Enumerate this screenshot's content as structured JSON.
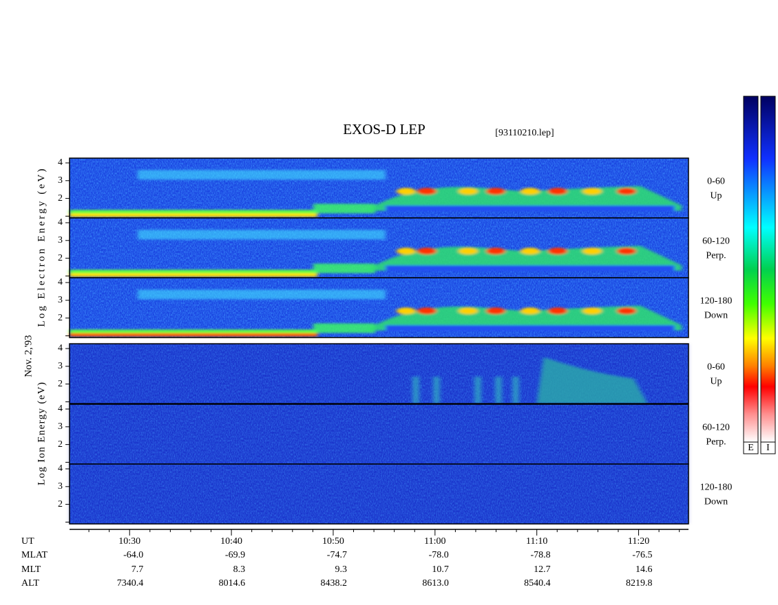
{
  "chart_data": {
    "type": "spectrogram",
    "title": "EXOS-D LEP",
    "subtitle": "[93110210.lep]",
    "date_label": "Nov. 2,'93",
    "xlim": [
      624.1,
      684.9
    ],
    "xticks": [
      {
        "value": 630,
        "label": "10:30"
      },
      {
        "value": 640,
        "label": "10:40"
      },
      {
        "value": 650,
        "label": "10:50"
      },
      {
        "value": 660,
        "label": "11:00"
      },
      {
        "value": 670,
        "label": "11:10"
      },
      {
        "value": 680,
        "label": "11:20"
      }
    ],
    "xminor_ticks": [
      626,
      628,
      632,
      634,
      636,
      638,
      642,
      644,
      646,
      648,
      652,
      654,
      656,
      658,
      662,
      664,
      666,
      668,
      672,
      674,
      676,
      678,
      682,
      684
    ],
    "ylim": [
      0.9,
      4.27
    ],
    "yticks": [
      2,
      3,
      4
    ],
    "yminor_ticks": [
      1
    ],
    "groups": [
      {
        "ylabel": "Log Electron Energy (eV)",
        "kind": "electron",
        "panels": [
          {
            "energy_range": "0-60",
            "direction": "Up"
          },
          {
            "energy_range": "60-120",
            "direction": "Perp."
          },
          {
            "energy_range": "120-180",
            "direction": "Down"
          }
        ]
      },
      {
        "ylabel": "Log Ion Energy (eV)",
        "kind": "ion",
        "panels": [
          {
            "energy_range": "0-60",
            "direction": "Up"
          },
          {
            "energy_range": "60-120",
            "direction": "Perp."
          },
          {
            "energy_range": "120-180",
            "direction": "Down"
          }
        ]
      }
    ],
    "orbit_table": {
      "rows": [
        {
          "name": "UT"
        },
        {
          "name": "MLAT",
          "values": [
            "-64.0",
            "-69.9",
            "-74.7",
            "-78.0",
            "-78.8",
            "-76.5"
          ]
        },
        {
          "name": "MLT",
          "values": [
            "7.7",
            "8.3",
            "9.3",
            "10.7",
            "12.7",
            "14.6"
          ]
        },
        {
          "name": "ALT",
          "values": [
            "7340.4",
            "8014.6",
            "8438.2",
            "8613.0",
            "8540.4",
            "8219.8"
          ]
        }
      ]
    },
    "colorbar_labels": [
      "E",
      "I"
    ]
  }
}
